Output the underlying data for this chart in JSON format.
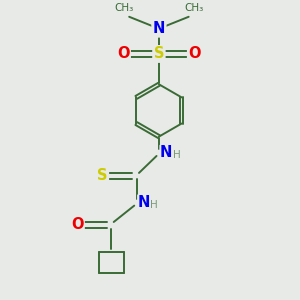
{
  "bg_color": "#e8eae8",
  "bond_color": "#3a6b35",
  "atom_colors": {
    "N": "#0000ee",
    "S_sulfo": "#cccc00",
    "O": "#ee0000",
    "S_thio": "#cccc00",
    "H": "#7a9a7a",
    "C": "#3a6b35"
  },
  "figsize": [
    3.0,
    3.0
  ],
  "dpi": 100,
  "xlim": [
    0,
    10
  ],
  "ylim": [
    0,
    10
  ]
}
